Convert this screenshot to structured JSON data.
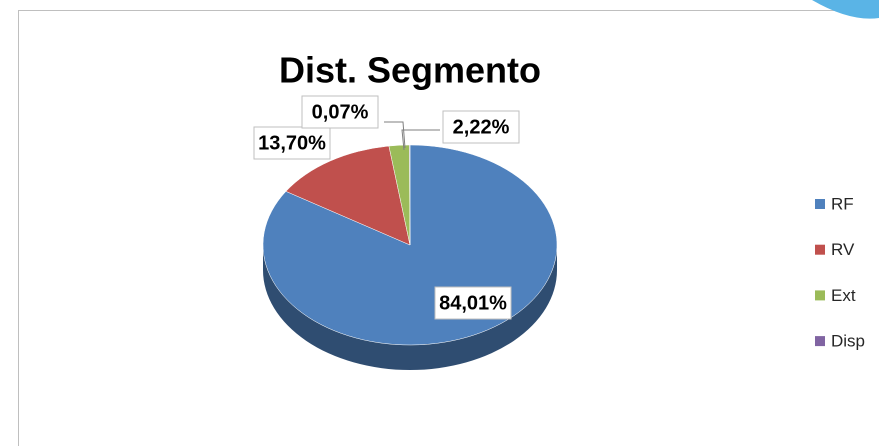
{
  "chart_data": {
    "type": "pie",
    "title": "Dist. Segmento",
    "categories": [
      "RF",
      "RV",
      "Ext",
      "Disp"
    ],
    "values": [
      84.01,
      13.7,
      2.22,
      0.07
    ],
    "value_labels": [
      "84,01%",
      "13,70%",
      "2,22%",
      "0,07%"
    ],
    "colors": [
      "#4f81bd",
      "#c0504d",
      "#9bbb59",
      "#8064a2"
    ],
    "legend": "right"
  }
}
